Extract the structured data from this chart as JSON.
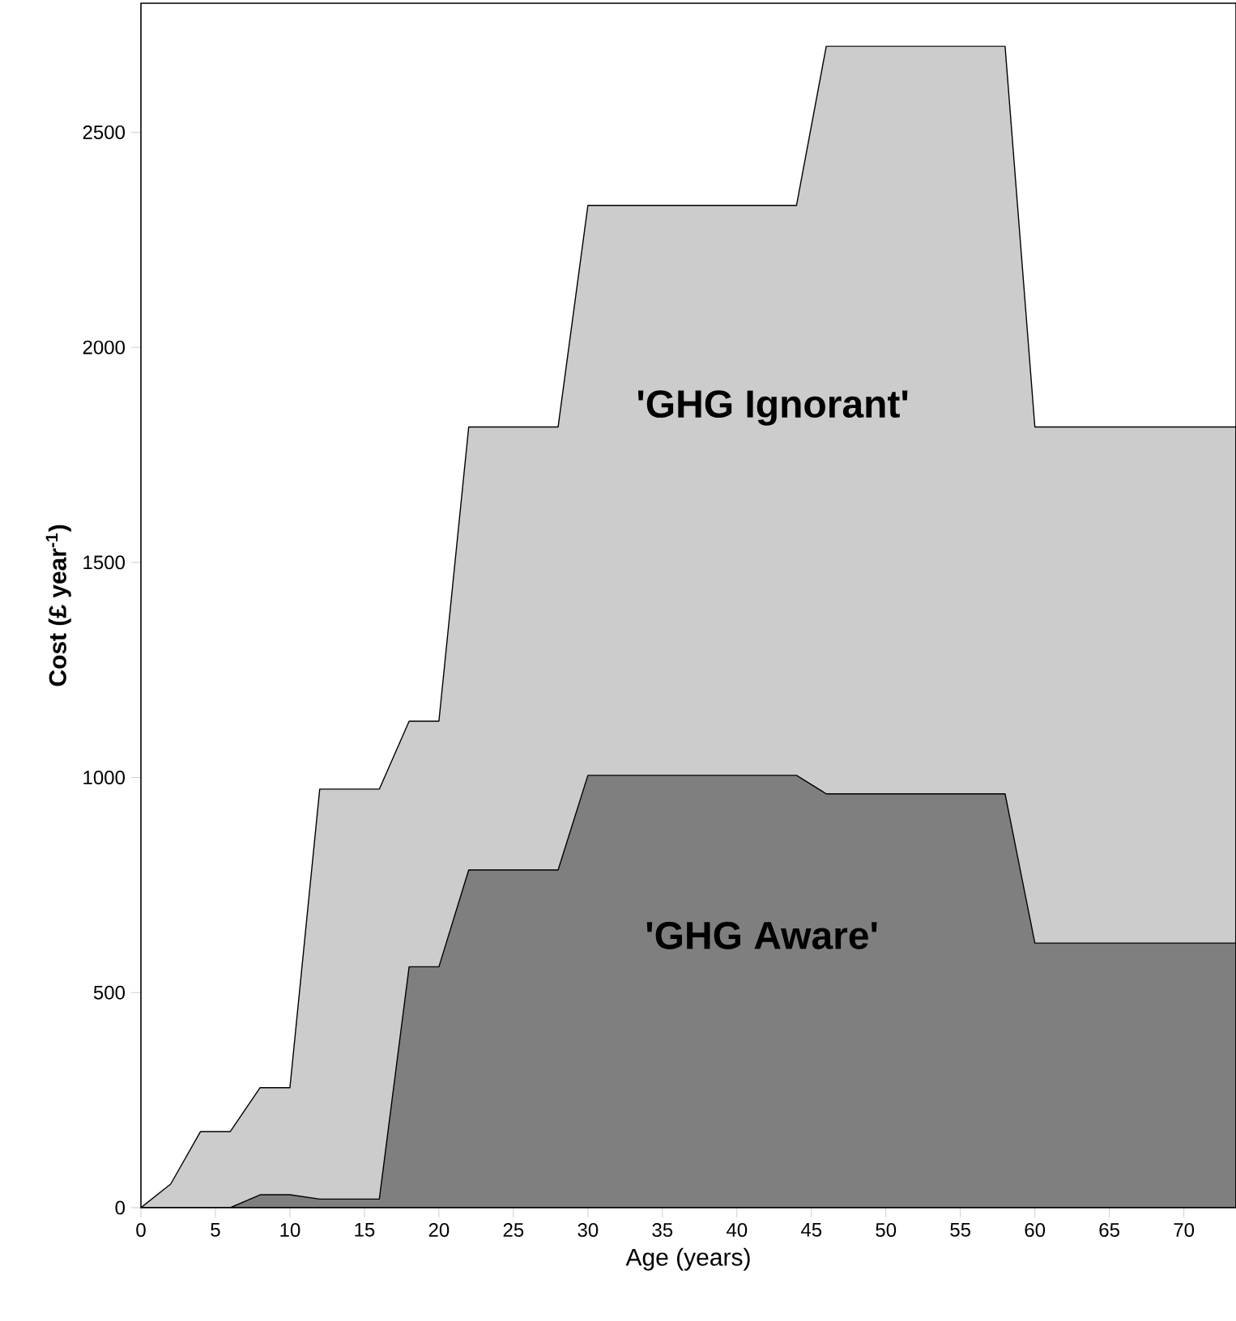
{
  "chart_data": {
    "type": "area",
    "xlabel": "Age (years)",
    "ylabel": "Cost (£ year$^{-1}$)",
    "xlim": [
      0,
      73.5
    ],
    "ylim": [
      0,
      2800
    ],
    "xticks": [
      0,
      5,
      10,
      15,
      20,
      25,
      30,
      35,
      40,
      45,
      50,
      55,
      60,
      65,
      70
    ],
    "yticks": [
      0,
      500,
      1000,
      1500,
      2000,
      2500
    ],
    "series": [
      {
        "name": "'GHG Ignorant'",
        "color": "#cccccc",
        "x": [
          0,
          2,
          4,
          6,
          8,
          10,
          12,
          16,
          18,
          20,
          22,
          28,
          30,
          44,
          46,
          58,
          60,
          73.5
        ],
        "values": [
          0,
          55,
          177,
          177,
          279,
          279,
          973,
          973,
          1131,
          1131,
          1815,
          1815,
          2330,
          2330,
          2700,
          2700,
          1815,
          1815
        ]
      },
      {
        "name": "'GHG Aware'",
        "color": "#7f7f7f",
        "x": [
          0,
          6,
          8,
          10,
          12,
          16,
          18,
          20,
          22,
          28,
          30,
          44,
          46,
          58,
          60,
          73.5
        ],
        "values": [
          0,
          0,
          30,
          30,
          20,
          20,
          560,
          560,
          785,
          785,
          1005,
          1005,
          962,
          962,
          615,
          615
        ]
      }
    ]
  }
}
